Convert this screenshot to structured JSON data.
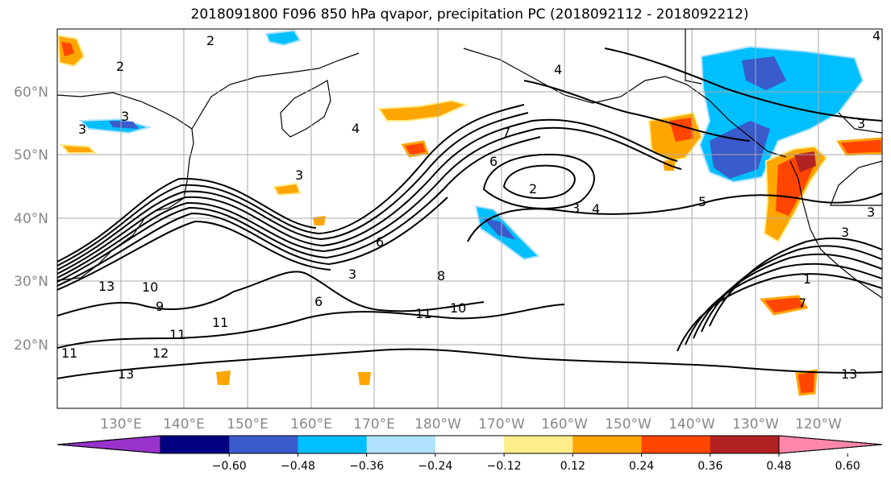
{
  "title": "2018091800 F096 850 hPa qvapor, precipitation PC (2018092112 - 2018092212)",
  "lat_labels": [
    "60°N",
    "50°N",
    "40°N",
    "30°N",
    "20°N"
  ],
  "lon_labels": [
    "130°E",
    "140°E",
    "150°E",
    "160°E",
    "170°E",
    "180°W",
    "170°W",
    "160°W",
    "150°W",
    "140°W",
    "130°W",
    "120°W"
  ],
  "colorbar": {
    "colors": [
      "#9933cc",
      "#000080",
      "#3a5bcc",
      "#00bfff",
      "#b0e2ff",
      "#ffffff",
      "#ffec8b",
      "#ffa500",
      "#ff4500",
      "#b22222",
      "#ff88aa"
    ],
    "tick_labels": [
      "−0.60",
      "−0.48",
      "−0.36",
      "−0.24",
      "−0.12",
      "0.12",
      "0.24",
      "0.36",
      "0.48",
      "0.60"
    ]
  },
  "contour_labels": [
    "2",
    "2",
    "3",
    "3",
    "3",
    "4",
    "3",
    "4",
    "6",
    "7",
    "2",
    "3",
    "4",
    "5",
    "3",
    "3",
    "4",
    "6",
    "8",
    "3",
    "6",
    "11",
    "10",
    "13",
    "10",
    "9",
    "11",
    "11",
    "12",
    "13",
    "11",
    "1",
    "13",
    "7"
  ]
}
